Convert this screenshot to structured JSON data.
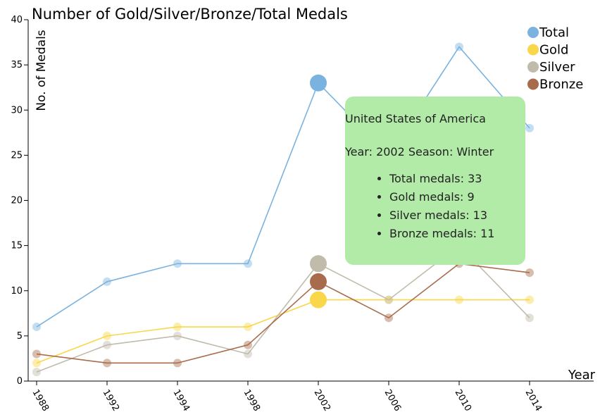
{
  "chart_data": {
    "type": "line",
    "title": "Number of Gold/Silver/Bronze/Total Medals",
    "xlabel": "Year",
    "ylabel": "No. of Medals",
    "ylim": [
      0,
      40
    ],
    "yticks": [
      0,
      5,
      10,
      15,
      20,
      25,
      30,
      35,
      40
    ],
    "categories": [
      "1988",
      "1992",
      "1994",
      "1998",
      "2002",
      "2006",
      "2010",
      "2014"
    ],
    "series": [
      {
        "name": "Total",
        "color": "#7ab3e0",
        "values": [
          6,
          11,
          13,
          13,
          33,
          25,
          37,
          28
        ]
      },
      {
        "name": "Gold",
        "color": "#f9d74b",
        "values": [
          2,
          5,
          6,
          6,
          9,
          9,
          9,
          9
        ]
      },
      {
        "name": "Silver",
        "color": "#c1bbab",
        "values": [
          1,
          4,
          5,
          3,
          13,
          9,
          15,
          7
        ]
      },
      {
        "name": "Bronze",
        "color": "#a86c4c",
        "values": [
          3,
          2,
          2,
          4,
          11,
          7,
          13,
          12
        ]
      }
    ],
    "highlight_index": 4,
    "legend_position": "top-right",
    "tooltip": {
      "country": "United States of America",
      "year_season": "Year: 2002 Season: Winter",
      "items": [
        "Total medals: 33",
        "Gold medals: 9",
        "Silver medals: 13",
        "Bronze medals: 11"
      ]
    }
  }
}
